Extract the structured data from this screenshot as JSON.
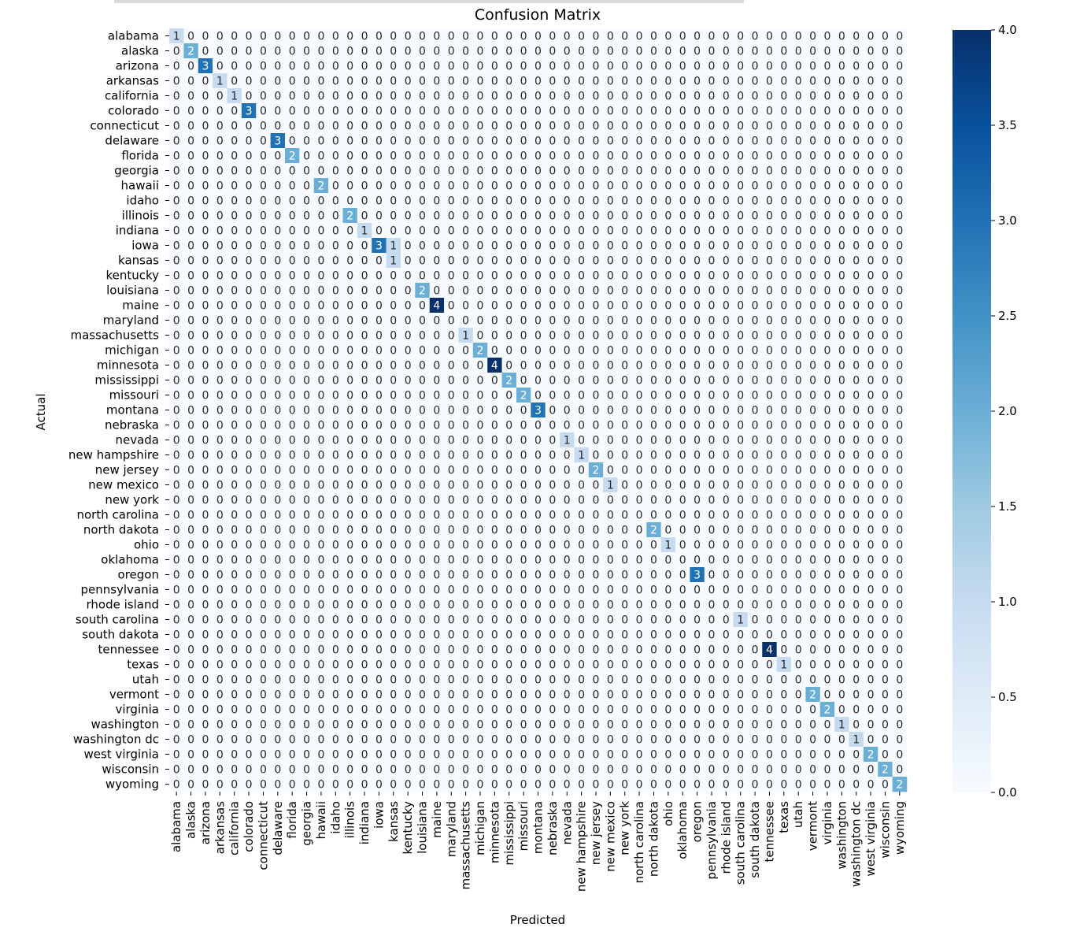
{
  "chart_data": {
    "type": "heatmap",
    "title": "Confusion Matrix",
    "xlabel": "Predicted",
    "ylabel": "Actual",
    "labels": [
      "alabama",
      "alaska",
      "arizona",
      "arkansas",
      "california",
      "colorado",
      "connecticut",
      "delaware",
      "florida",
      "georgia",
      "hawaii",
      "idaho",
      "illinois",
      "indiana",
      "iowa",
      "kansas",
      "kentucky",
      "louisiana",
      "maine",
      "maryland",
      "massachusetts",
      "michigan",
      "minnesota",
      "mississippi",
      "missouri",
      "montana",
      "nebraska",
      "nevada",
      "new hampshire",
      "new jersey",
      "new mexico",
      "new york",
      "north carolina",
      "north dakota",
      "ohio",
      "oklahoma",
      "oregon",
      "pennsylvania",
      "rhode island",
      "south carolina",
      "south dakota",
      "tennessee",
      "texas",
      "utah",
      "vermont",
      "virginia",
      "washington",
      "washington dc",
      "west virginia",
      "wisconsin",
      "wyoming"
    ],
    "nonzero": [
      {
        "row": 0,
        "col": 0,
        "value": 1
      },
      {
        "row": 1,
        "col": 1,
        "value": 2
      },
      {
        "row": 2,
        "col": 2,
        "value": 3
      },
      {
        "row": 3,
        "col": 3,
        "value": 1
      },
      {
        "row": 4,
        "col": 4,
        "value": 1
      },
      {
        "row": 5,
        "col": 5,
        "value": 3
      },
      {
        "row": 7,
        "col": 7,
        "value": 3
      },
      {
        "row": 8,
        "col": 8,
        "value": 2
      },
      {
        "row": 10,
        "col": 10,
        "value": 2
      },
      {
        "row": 12,
        "col": 12,
        "value": 2
      },
      {
        "row": 13,
        "col": 13,
        "value": 1
      },
      {
        "row": 14,
        "col": 14,
        "value": 3
      },
      {
        "row": 14,
        "col": 15,
        "value": 1
      },
      {
        "row": 15,
        "col": 15,
        "value": 1
      },
      {
        "row": 17,
        "col": 17,
        "value": 2
      },
      {
        "row": 18,
        "col": 18,
        "value": 4
      },
      {
        "row": 20,
        "col": 20,
        "value": 1
      },
      {
        "row": 21,
        "col": 21,
        "value": 2
      },
      {
        "row": 22,
        "col": 22,
        "value": 4
      },
      {
        "row": 23,
        "col": 23,
        "value": 2
      },
      {
        "row": 24,
        "col": 24,
        "value": 2
      },
      {
        "row": 25,
        "col": 25,
        "value": 3
      },
      {
        "row": 27,
        "col": 27,
        "value": 1
      },
      {
        "row": 28,
        "col": 28,
        "value": 1
      },
      {
        "row": 29,
        "col": 29,
        "value": 2
      },
      {
        "row": 30,
        "col": 30,
        "value": 1
      },
      {
        "row": 33,
        "col": 33,
        "value": 2
      },
      {
        "row": 34,
        "col": 34,
        "value": 1
      },
      {
        "row": 36,
        "col": 36,
        "value": 3
      },
      {
        "row": 39,
        "col": 39,
        "value": 1
      },
      {
        "row": 41,
        "col": 41,
        "value": 4
      },
      {
        "row": 42,
        "col": 42,
        "value": 1
      },
      {
        "row": 44,
        "col": 44,
        "value": 2
      },
      {
        "row": 45,
        "col": 45,
        "value": 2
      },
      {
        "row": 46,
        "col": 46,
        "value": 1
      },
      {
        "row": 47,
        "col": 47,
        "value": 1
      },
      {
        "row": 48,
        "col": 48,
        "value": 2
      },
      {
        "row": 49,
        "col": 49,
        "value": 2
      },
      {
        "row": 50,
        "col": 50,
        "value": 2
      }
    ],
    "colorbar": {
      "min": 0.0,
      "max": 4.0,
      "ticks": [
        "0.0",
        "0.5",
        "1.0",
        "1.5",
        "2.0",
        "2.5",
        "3.0",
        "3.5",
        "4.0"
      ],
      "colormap": "Blues"
    }
  }
}
